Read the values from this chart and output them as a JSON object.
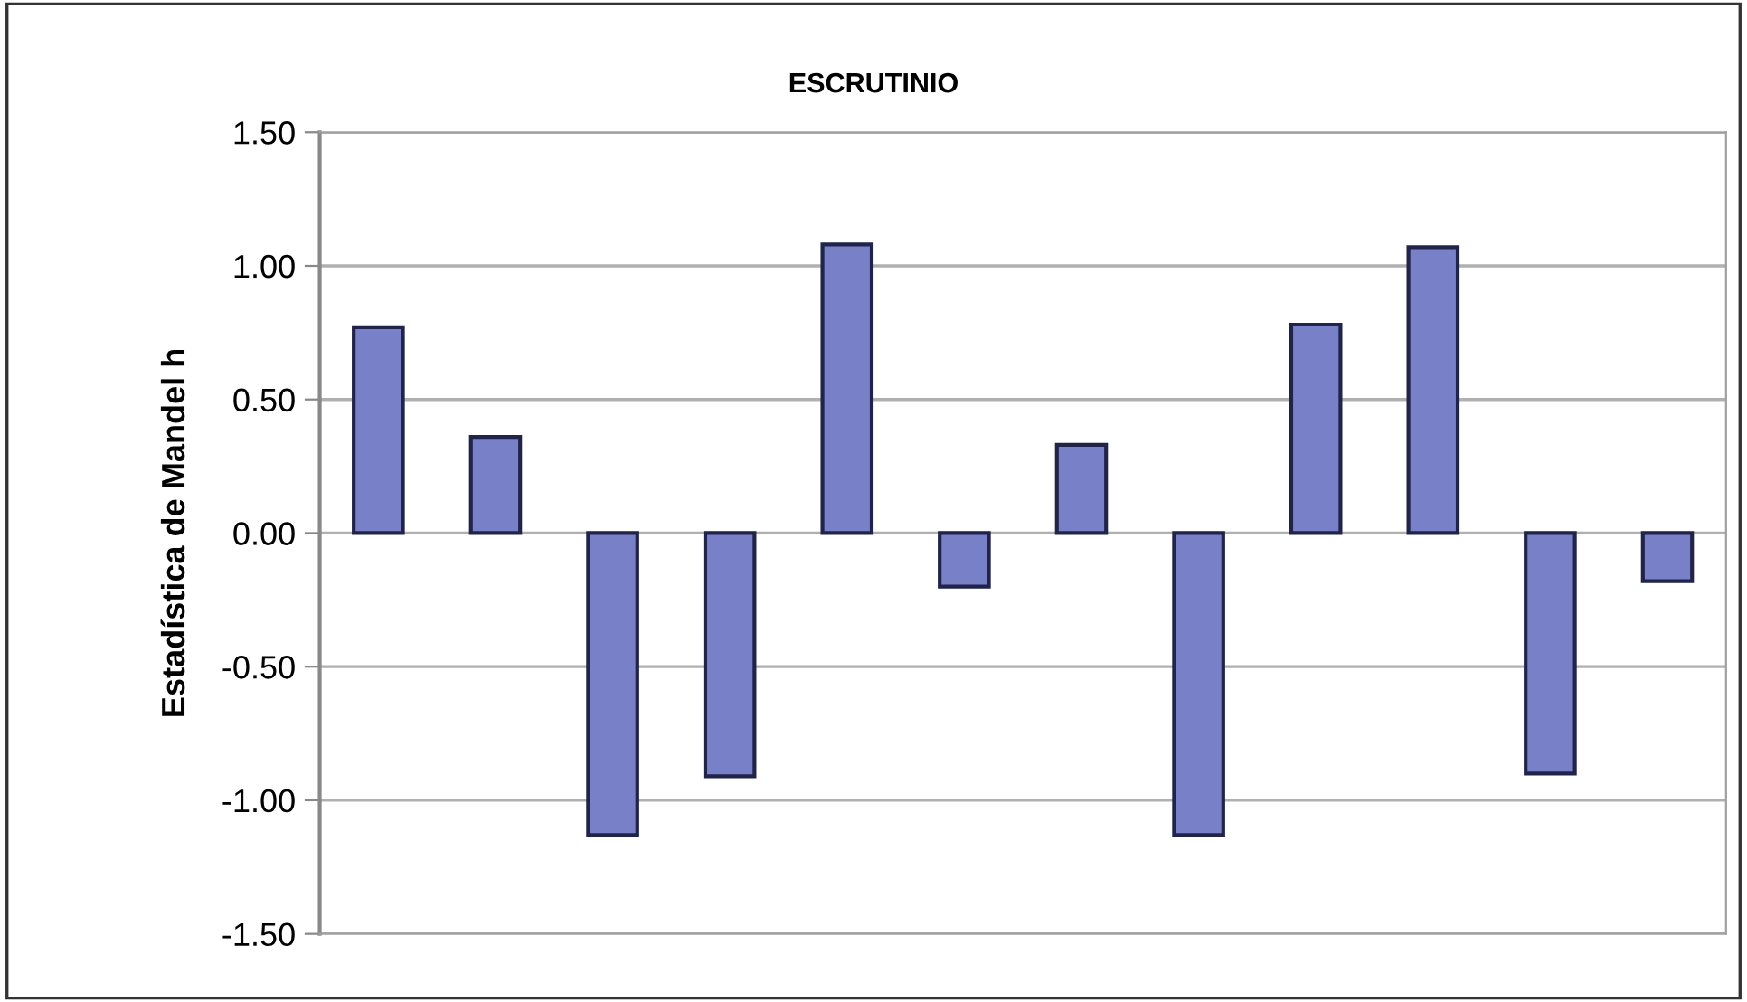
{
  "chart_data": {
    "type": "bar",
    "title": "ESCRUTINIO",
    "ylabel": "Estadística de Mandel h",
    "categories": [
      null,
      null,
      null,
      null,
      null,
      null,
      null,
      null,
      null,
      null,
      null,
      null
    ],
    "values": [
      0.77,
      0.36,
      -1.13,
      -0.91,
      1.08,
      -0.2,
      0.33,
      -1.13,
      0.78,
      1.07,
      -0.9,
      -0.18
    ],
    "color": "#7880c8",
    "ylim": [
      -1.5,
      1.5
    ],
    "yticks": [
      {
        "value": -1.5,
        "label": "-1.50"
      },
      {
        "value": -1.0,
        "label": "-1.00"
      },
      {
        "value": -0.5,
        "label": "-0.50"
      },
      {
        "value": 0,
        "label": "0.00"
      },
      {
        "value": 0.5,
        "label": "0.50"
      },
      {
        "value": 1.0,
        "label": "1.00"
      },
      {
        "value": 1.5,
        "label": "1.50"
      }
    ],
    "grid": "y",
    "tick_labels": "y"
  }
}
